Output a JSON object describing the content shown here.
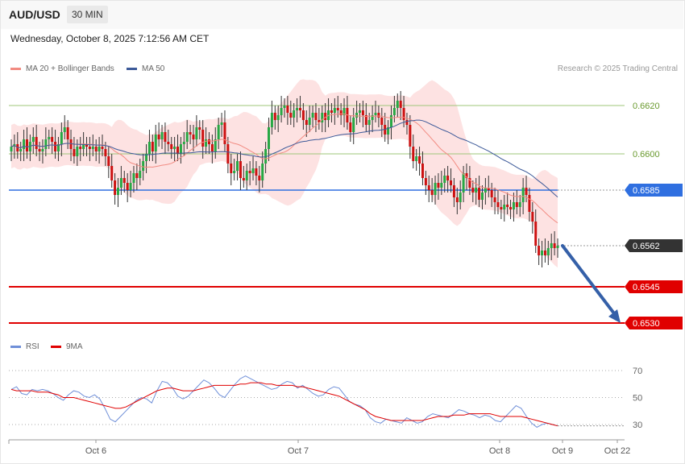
{
  "header": {
    "symbol": "AUD/USD",
    "timeframe": "30 MIN"
  },
  "datetime": "Wednesday, October 8, 2025 7:12:56 AM CET",
  "legend": {
    "ma20": {
      "label": "MA 20 + Bollinger Bands",
      "color": "#f28b82"
    },
    "ma50": {
      "label": "MA 50",
      "color": "#3d5a99"
    },
    "rsi": {
      "label": "RSI",
      "color": "#6f8fd8"
    },
    "rsi_ma": {
      "label": "9MA",
      "color": "#e00000"
    }
  },
  "research_credit": "Research © 2025 Trading Central",
  "price_levels": [
    {
      "value": 0.662,
      "label": "0.6620",
      "kind": "grid"
    },
    {
      "value": 0.66,
      "label": "0.6600",
      "kind": "grid"
    },
    {
      "value": 0.6585,
      "label": "0.6585",
      "kind": "pivot",
      "color": "#2f6fe0"
    },
    {
      "value": 0.6562,
      "label": "0.6562",
      "kind": "last",
      "color": "#333333"
    },
    {
      "value": 0.6545,
      "label": "0.6545",
      "kind": "target",
      "color": "#e00000"
    },
    {
      "value": 0.653,
      "label": "0.6530",
      "kind": "target",
      "color": "#e00000"
    }
  ],
  "rsi_levels": [
    {
      "value": 70,
      "label": "70"
    },
    {
      "value": 50,
      "label": "50"
    },
    {
      "value": 30,
      "label": "30"
    }
  ],
  "x_ticks": [
    "Oct 6",
    "Oct 7",
    "Oct 8",
    "Oct 9",
    "Oct 22"
  ],
  "chart_data": [
    {
      "type": "candlestick",
      "title": "AUD/USD 30 MIN",
      "ylim": [
        0.6515,
        0.664
      ],
      "close": [
        0.6603,
        0.6604,
        0.6601,
        0.6602,
        0.6606,
        0.6601,
        0.6605,
        0.6607,
        0.6602,
        0.6601,
        0.6602,
        0.6606,
        0.6607,
        0.6605,
        0.6601,
        0.6604,
        0.6609,
        0.6611,
        0.6606,
        0.6602,
        0.6599,
        0.6603,
        0.6602,
        0.6604,
        0.6603,
        0.6602,
        0.6603,
        0.6601,
        0.6603,
        0.6602,
        0.6599,
        0.6595,
        0.6589,
        0.6583,
        0.6586,
        0.659,
        0.6588,
        0.6585,
        0.6588,
        0.6592,
        0.659,
        0.6593,
        0.6597,
        0.66,
        0.6605,
        0.6601,
        0.6608,
        0.6606,
        0.6609,
        0.6605,
        0.6604,
        0.6602,
        0.6603,
        0.66,
        0.6604,
        0.6605,
        0.6609,
        0.6608,
        0.6606,
        0.6611,
        0.661,
        0.6603,
        0.6606,
        0.6604,
        0.6601,
        0.6606,
        0.6612,
        0.6613,
        0.6604,
        0.6596,
        0.6592,
        0.6593,
        0.6597,
        0.659,
        0.6589,
        0.6593,
        0.6592,
        0.6594,
        0.6591,
        0.6589,
        0.6596,
        0.6602,
        0.6611,
        0.6617,
        0.6614,
        0.6616,
        0.6619,
        0.662,
        0.6617,
        0.6615,
        0.6618,
        0.6619,
        0.6618,
        0.6614,
        0.6612,
        0.6615,
        0.6617,
        0.6614,
        0.6613,
        0.6617,
        0.6614,
        0.6618,
        0.6617,
        0.6619,
        0.6618,
        0.6616,
        0.6619,
        0.6613,
        0.6609,
        0.6615,
        0.6617,
        0.6618,
        0.6616,
        0.6612,
        0.6614,
        0.6616,
        0.6617,
        0.6615,
        0.6612,
        0.6608,
        0.6611,
        0.6616,
        0.6619,
        0.6622,
        0.6619,
        0.6614,
        0.6612,
        0.6603,
        0.6597,
        0.6599,
        0.6596,
        0.659,
        0.6587,
        0.6585,
        0.6583,
        0.6588,
        0.6586,
        0.6588,
        0.6591,
        0.6589,
        0.6587,
        0.6582,
        0.658,
        0.6584,
        0.6592,
        0.659,
        0.6586,
        0.6584,
        0.6586,
        0.6581,
        0.6584,
        0.6586,
        0.6585,
        0.6582,
        0.658,
        0.6578,
        0.6577,
        0.6579,
        0.6578,
        0.6577,
        0.658,
        0.6578,
        0.658,
        0.6586,
        0.6583,
        0.6576,
        0.6572,
        0.6562,
        0.6558,
        0.656,
        0.6558,
        0.6561,
        0.6563,
        0.6561,
        0.6562
      ]
    },
    {
      "type": "line",
      "series": [
        {
          "name": "RSI",
          "values": [
            56,
            58,
            53,
            52,
            56,
            55,
            56,
            55,
            53,
            50,
            48,
            52,
            55,
            54,
            51,
            50,
            52,
            49,
            42,
            34,
            32,
            36,
            40,
            44,
            48,
            50,
            49,
            46,
            55,
            62,
            61,
            57,
            51,
            49,
            51,
            55,
            59,
            63,
            61,
            57,
            52,
            50,
            55,
            60,
            64,
            66,
            64,
            62,
            60,
            58,
            56,
            57,
            60,
            62,
            61,
            57,
            59,
            56,
            53,
            51,
            52,
            56,
            58,
            57,
            52,
            47,
            45,
            44,
            41,
            35,
            32,
            31,
            34,
            33,
            32,
            31,
            35,
            33,
            31,
            32,
            36,
            38,
            37,
            36,
            35,
            38,
            41,
            40,
            38,
            37,
            35,
            37,
            36,
            33,
            32,
            36,
            40,
            44,
            42,
            36,
            31,
            28,
            30,
            31,
            30,
            29
          ]
        },
        {
          "name": "9MA",
          "values": [
            56,
            55,
            55,
            55,
            55,
            54,
            54,
            54,
            53,
            52,
            50,
            50,
            50,
            49,
            48,
            47,
            46,
            45,
            44,
            43,
            42,
            42,
            43,
            45,
            47,
            49,
            51,
            53,
            55,
            56,
            57,
            57,
            56,
            55,
            55,
            55,
            56,
            57,
            58,
            59,
            59,
            59,
            59,
            59,
            60,
            60,
            61,
            61,
            61,
            60,
            60,
            59,
            59,
            59,
            59,
            58,
            58,
            57,
            56,
            55,
            54,
            53,
            52,
            51,
            49,
            47,
            45,
            43,
            41,
            38,
            36,
            35,
            34,
            33,
            33,
            33,
            33,
            33,
            33,
            33,
            34,
            35,
            36,
            36,
            36,
            37,
            37,
            37,
            38,
            38,
            38,
            38,
            38,
            37,
            36,
            36,
            36,
            36,
            36,
            35,
            34,
            33,
            32,
            31,
            30,
            29
          ]
        }
      ],
      "ylim": [
        15,
        80
      ]
    }
  ]
}
